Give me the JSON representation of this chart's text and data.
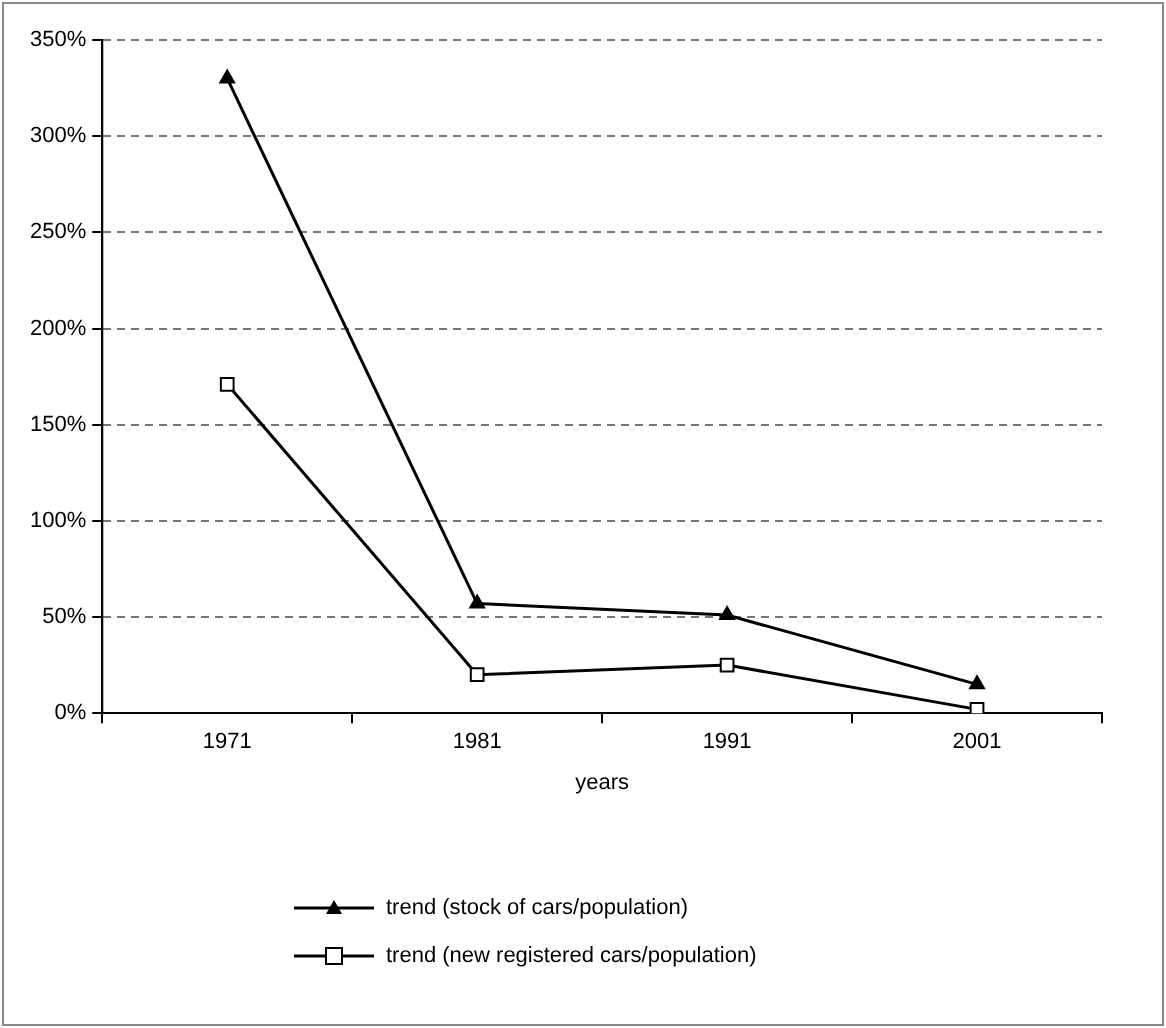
{
  "chart_data": {
    "type": "line",
    "xlabel": "years",
    "categories": [
      "1971",
      "1981",
      "1991",
      "2001"
    ],
    "series": [
      {
        "name": "trend (stock of cars/population)",
        "color": "#000000",
        "marker": "triangle",
        "values": [
          330,
          57,
          51,
          15
        ]
      },
      {
        "name": "trend (new registered cars/population)",
        "color": "#000000",
        "marker": "square",
        "values": [
          171,
          20,
          25,
          2
        ]
      }
    ],
    "ylim": [
      0,
      350
    ],
    "yticks": [
      {
        "value": 0,
        "label": "0%"
      },
      {
        "value": 50,
        "label": "50%"
      },
      {
        "value": 100,
        "label": "100%"
      },
      {
        "value": 150,
        "label": "150%"
      },
      {
        "value": 200,
        "label": "200%"
      },
      {
        "value": 250,
        "label": "250%"
      },
      {
        "value": 300,
        "label": "300%"
      },
      {
        "value": 350,
        "label": "350%"
      }
    ],
    "grid": "y",
    "legend": "bottom",
    "line_style": "solid"
  }
}
